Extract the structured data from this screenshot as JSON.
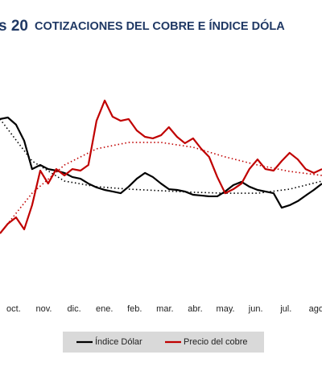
{
  "chart_data": {
    "type": "line",
    "title_prefix": "s 20",
    "title": "COTIZACIONES DEL COBRE E ÍNDICE DÓLA",
    "categories": [
      "oct.",
      "nov.",
      "dic.",
      "ene.",
      "feb.",
      "mar.",
      "abr.",
      "may.",
      "jun.",
      "jul.",
      "ago"
    ],
    "x": [
      -0.45,
      -0.19,
      0.08,
      0.35,
      0.61,
      0.88,
      1.14,
      1.41,
      1.68,
      1.94,
      2.21,
      2.47,
      2.74,
      3.01,
      3.27,
      3.54,
      3.8,
      4.07,
      4.34,
      4.6,
      4.87,
      5.13,
      5.4,
      5.66,
      5.93,
      6.2,
      6.46,
      6.73,
      6.99,
      7.26,
      7.53,
      7.79,
      8.06,
      8.32,
      8.59,
      8.86,
      9.12,
      9.39,
      9.65,
      9.92,
      10.19
    ],
    "xlim": [
      -0.45,
      10.19
    ],
    "ylim": [
      0,
      100
    ],
    "series": [
      {
        "name": "Índice Dólar",
        "color": "#000000",
        "values": [
          84.2,
          85,
          81.3,
          72.9,
          58.3,
          60.4,
          58.3,
          57.5,
          56.3,
          54.2,
          53.3,
          50.8,
          48.8,
          47.5,
          46.7,
          45.8,
          49.2,
          53.3,
          56.3,
          54.2,
          50.8,
          47.9,
          47.5,
          46.7,
          45,
          44.6,
          44.2,
          44.2,
          46.7,
          50,
          51.7,
          49.2,
          47.5,
          46.7,
          45.8,
          38.3,
          39.6,
          41.7,
          44.6,
          47.5,
          50.8
        ],
        "trend": {
          "x": [
            -0.45,
            0.61,
            1.68,
            2.74,
            3.8,
            4.87,
            5.93,
            6.99,
            8.06,
            9.12,
            10.19
          ],
          "values": [
            84.2,
            62.5,
            52.1,
            49.2,
            47.9,
            47.1,
            46.3,
            45.8,
            45.8,
            47.9,
            52.1
          ]
        }
      },
      {
        "name": "Precio del cobre",
        "color": "#c00000",
        "values": [
          25,
          30,
          33.3,
          27.1,
          39.6,
          57.5,
          50.8,
          58.3,
          55,
          58.3,
          57.5,
          60.4,
          83.3,
          93.8,
          85.4,
          83.3,
          84.2,
          78.3,
          75,
          74.2,
          75.8,
          80,
          75,
          71.7,
          74.2,
          68.8,
          64.6,
          54.2,
          45.8,
          47.9,
          50.8,
          58.3,
          63.3,
          58.3,
          57.5,
          62.5,
          66.7,
          63.3,
          58.3,
          56.3,
          58.3
        ],
        "trend": {
          "x": [
            -0.45,
            0.61,
            1.68,
            2.74,
            3.8,
            4.87,
            5.93,
            6.99,
            8.06,
            9.12,
            10.19
          ],
          "values": [
            25,
            45.8,
            60.4,
            68.8,
            72.1,
            72.1,
            69.6,
            64.6,
            60.4,
            57.1,
            55
          ]
        }
      }
    ]
  }
}
